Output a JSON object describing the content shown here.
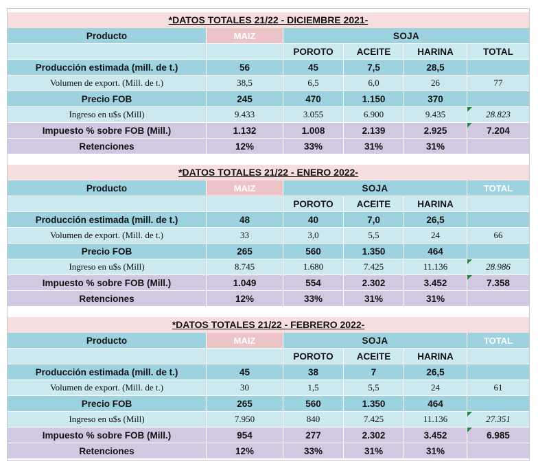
{
  "tables": [
    {
      "title": "*DATOS TOTALES 21/22 - DICIEMBRE 2021-",
      "header": {
        "producto": "Producto",
        "maiz": "MAIZ",
        "soja": "SOJA",
        "total": ""
      },
      "subheader": {
        "poroto": "POROTO",
        "aceite": "ACEITE",
        "harina": "HARINA",
        "total": "TOTAL"
      },
      "rows": [
        {
          "label": "Producción estimada (mill. de t.)",
          "maiz": "56",
          "poroto": "45",
          "aceite": "7,5",
          "harina": "28,5",
          "total": ""
        },
        {
          "label": "Volumen de export. (Mill. de t.)",
          "maiz": "38,5",
          "poroto": "6,5",
          "aceite": "6,0",
          "harina": "26",
          "total": "77"
        },
        {
          "label": "Precio FOB",
          "maiz": "245",
          "poroto": "470",
          "aceite": "1.150",
          "harina": "370",
          "total": ""
        },
        {
          "label": "Ingreso en u$s (Mill)",
          "maiz": "9.433",
          "poroto": "3.055",
          "aceite": "6.900",
          "harina": "9.435",
          "total": "28.823"
        },
        {
          "label": "Impuesto % sobre FOB (Mill.)",
          "maiz": "1.132",
          "poroto": "1.008",
          "aceite": "2.139",
          "harina": "2.925",
          "total": "7.204"
        },
        {
          "label": "Retenciones",
          "maiz": "12%",
          "poroto": "33%",
          "aceite": "31%",
          "harina": "31%",
          "total": ""
        }
      ]
    },
    {
      "title": "*DATOS TOTALES 21/22 - ENERO 2022-",
      "header": {
        "producto": "Producto",
        "maiz": "MAIZ",
        "soja": "SOJA",
        "total": "TOTAL"
      },
      "subheader": {
        "poroto": "POROTO",
        "aceite": "ACEITE",
        "harina": "HARINA",
        "total": ""
      },
      "rows": [
        {
          "label": "Producción estimada (mill. de t.)",
          "maiz": "48",
          "poroto": "40",
          "aceite": "7,0",
          "harina": "26,5",
          "total": ""
        },
        {
          "label": "Volumen de export. (Mill. de t.)",
          "maiz": "33",
          "poroto": "3,0",
          "aceite": "5,5",
          "harina": "24",
          "total": "66"
        },
        {
          "label": "Precio FOB",
          "maiz": "265",
          "poroto": "560",
          "aceite": "1.350",
          "harina": "464",
          "total": ""
        },
        {
          "label": "Ingreso en u$s (Mill)",
          "maiz": "8.745",
          "poroto": "1.680",
          "aceite": "7.425",
          "harina": "11.136",
          "total": "28.986"
        },
        {
          "label": "Impuesto % sobre FOB (Mill.)",
          "maiz": "1.049",
          "poroto": "554",
          "aceite": "2.302",
          "harina": "3.452",
          "total": "7.358"
        },
        {
          "label": "Retenciones",
          "maiz": "12%",
          "poroto": "33%",
          "aceite": "31%",
          "harina": "31%",
          "total": ""
        }
      ]
    },
    {
      "title": "*DATOS TOTALES 21/22 - FEBRERO 2022-",
      "header": {
        "producto": "Producto",
        "maiz": "MAIZ",
        "soja": "SOJA",
        "total": "TOTAL"
      },
      "subheader": {
        "poroto": "POROTO",
        "aceite": "ACEITE",
        "harina": "HARINA",
        "total": ""
      },
      "rows": [
        {
          "label": "Producción estimada (mill. de t.)",
          "maiz": "45",
          "poroto": "38",
          "aceite": "7",
          "harina": "26,5",
          "total": ""
        },
        {
          "label": "Volumen de export. (Mill. de t.)",
          "maiz": "30",
          "poroto": "1,5",
          "aceite": "5,5",
          "harina": "24",
          "total": "61"
        },
        {
          "label": "Precio FOB",
          "maiz": "265",
          "poroto": "560",
          "aceite": "1.350",
          "harina": "464",
          "total": ""
        },
        {
          "label": "Ingreso en u$s (Mill)",
          "maiz": "7.950",
          "poroto": "840",
          "aceite": "7.425",
          "harina": "11.136",
          "total": "27.351"
        },
        {
          "label": "Impuesto % sobre FOB (Mill.)",
          "maiz": "954",
          "poroto": "277",
          "aceite": "2.302",
          "harina": "3.452",
          "total": "6.985"
        },
        {
          "label": "Retenciones",
          "maiz": "12%",
          "poroto": "33%",
          "aceite": "31%",
          "harina": "31%",
          "total": ""
        }
      ]
    }
  ]
}
